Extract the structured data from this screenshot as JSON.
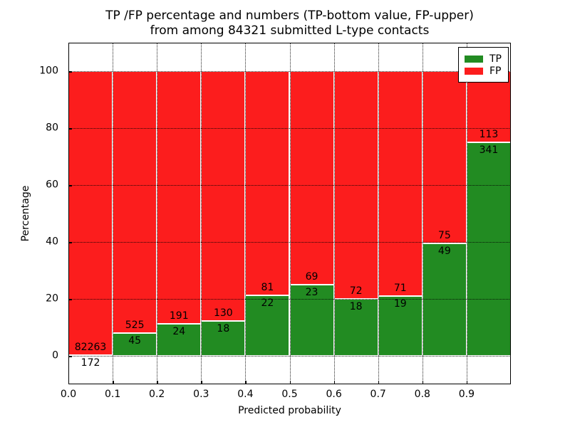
{
  "figure": {
    "title_line1": "TP /FP percentage and numbers (TP-bottom value, FP-upper)",
    "title_line2": "from among 84321 submitted L-type contacts"
  },
  "axes": {
    "xlabel": "Predicted probability",
    "ylabel": "Percentage",
    "x_tick_labels": [
      "0.0",
      "0.1",
      "0.2",
      "0.3",
      "0.4",
      "0.5",
      "0.6",
      "0.7",
      "0.8",
      "0.9"
    ],
    "y_tick_labels": [
      "0",
      "20",
      "40",
      "60",
      "80",
      "100"
    ]
  },
  "legend": {
    "position": "upper right",
    "items": [
      {
        "label": "TP",
        "color": "#228b22"
      },
      {
        "label": "FP",
        "color": "#fc1d1d"
      }
    ]
  },
  "chart_data": {
    "type": "bar",
    "stacked": true,
    "normalized_to_percent": true,
    "title": "TP /FP percentage and numbers (TP-bottom value, FP-upper) from among 84321 submitted L-type contacts",
    "xlabel": "Predicted probability",
    "ylabel": "Percentage",
    "xlim": [
      0.0,
      1.0
    ],
    "ylim": [
      -10,
      110
    ],
    "bar_width": 0.1,
    "grid": true,
    "legend_position": "upper right",
    "total_contacts": 84321,
    "bin_edges": [
      0.0,
      0.1,
      0.2,
      0.3,
      0.4,
      0.5,
      0.6,
      0.7,
      0.8,
      0.9,
      1.0
    ],
    "categories": [
      "0.0-0.1",
      "0.1-0.2",
      "0.2-0.3",
      "0.3-0.4",
      "0.4-0.5",
      "0.5-0.6",
      "0.6-0.7",
      "0.7-0.8",
      "0.8-0.9",
      "0.9-1.0"
    ],
    "series": [
      {
        "name": "TP",
        "color": "#228b22",
        "counts": [
          172,
          45,
          24,
          18,
          22,
          23,
          18,
          19,
          49,
          341
        ]
      },
      {
        "name": "FP",
        "color": "#fc1d1d",
        "counts": [
          82263,
          525,
          191,
          130,
          81,
          69,
          72,
          71,
          75,
          113
        ]
      }
    ],
    "tp_percent_of_bin": [
      0.21,
      7.89,
      11.16,
      12.16,
      21.36,
      25.0,
      20.0,
      21.11,
      39.52,
      75.11
    ]
  }
}
